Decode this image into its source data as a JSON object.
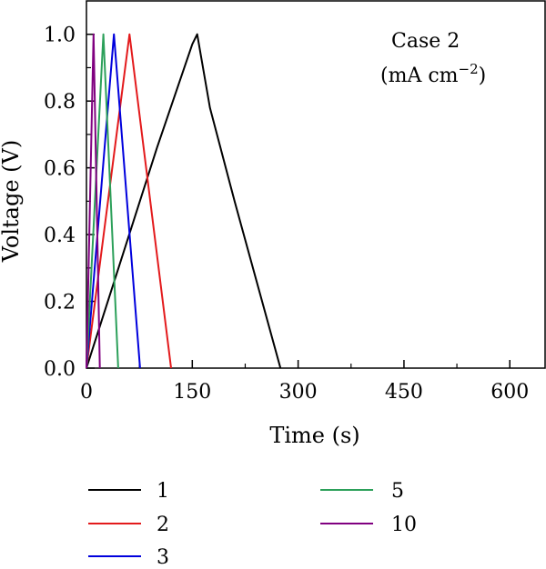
{
  "chart_data": {
    "type": "line",
    "xlabel": "Time (s)",
    "ylabel": "Voltage (V)",
    "xlim": [
      0,
      650
    ],
    "ylim": [
      0,
      1.1
    ],
    "xticks": [
      0,
      150,
      300,
      450,
      600
    ],
    "yticks": [
      0.0,
      0.2,
      0.4,
      0.6,
      0.8,
      1.0
    ],
    "xtick_labels": [
      "0",
      "150",
      "300",
      "450",
      "600"
    ],
    "ytick_labels": [
      "0.0",
      "0.2",
      "0.4",
      "0.6",
      "0.8",
      "1.0"
    ],
    "grid": false,
    "annotation": {
      "line1": "Case 2",
      "line2_prefix": "(mA cm",
      "line2_sup": "−2",
      "line2_suffix": ")"
    },
    "legend_position": "bottom",
    "series": [
      {
        "name": "1",
        "color": "#000000",
        "x": [
          0,
          100,
          150,
          157,
          175,
          210,
          275
        ],
        "y": [
          0,
          0.66,
          0.97,
          1.0,
          0.78,
          0.5,
          0
        ]
      },
      {
        "name": "2",
        "color": "#e31a1c",
        "x": [
          0,
          61,
          120
        ],
        "y": [
          0,
          1.0,
          0
        ]
      },
      {
        "name": "3",
        "color": "#0000dd",
        "x": [
          0,
          39,
          76
        ],
        "y": [
          0,
          1.0,
          0
        ]
      },
      {
        "name": "5",
        "color": "#2ca05a",
        "x": [
          0,
          24,
          45
        ],
        "y": [
          0,
          1.0,
          0
        ]
      },
      {
        "name": "10",
        "color": "#800080",
        "x": [
          0,
          10,
          19
        ],
        "y": [
          0,
          1.0,
          0
        ]
      }
    ]
  }
}
